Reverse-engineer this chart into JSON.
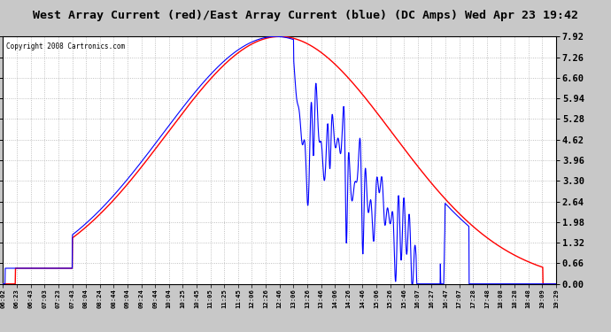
{
  "title": "West Array Current (red)/East Array Current (blue) (DC Amps) Wed Apr 23 19:42",
  "copyright": "Copyright 2008 Cartronics.com",
  "background_color": "#c8c8c8",
  "plot_bg_color": "#ffffff",
  "grid_color": "#b0b0b0",
  "x_labels": [
    "06:02",
    "06:23",
    "06:43",
    "07:03",
    "07:23",
    "07:43",
    "08:04",
    "08:24",
    "08:44",
    "09:04",
    "09:24",
    "09:44",
    "10:04",
    "10:25",
    "10:45",
    "11:05",
    "11:25",
    "11:45",
    "12:06",
    "12:26",
    "12:46",
    "13:06",
    "13:26",
    "13:46",
    "14:06",
    "14:26",
    "14:46",
    "15:06",
    "15:26",
    "15:46",
    "16:07",
    "16:27",
    "16:47",
    "17:07",
    "17:28",
    "17:48",
    "18:08",
    "18:28",
    "18:48",
    "19:09",
    "19:29"
  ],
  "y_ticks": [
    0.0,
    0.66,
    1.32,
    1.98,
    2.64,
    3.3,
    3.96,
    4.62,
    5.28,
    5.94,
    6.6,
    7.26,
    7.92
  ],
  "y_max": 7.92,
  "y_min": 0.0,
  "red_line_color": "#ff0000",
  "blue_line_color": "#0000ff"
}
